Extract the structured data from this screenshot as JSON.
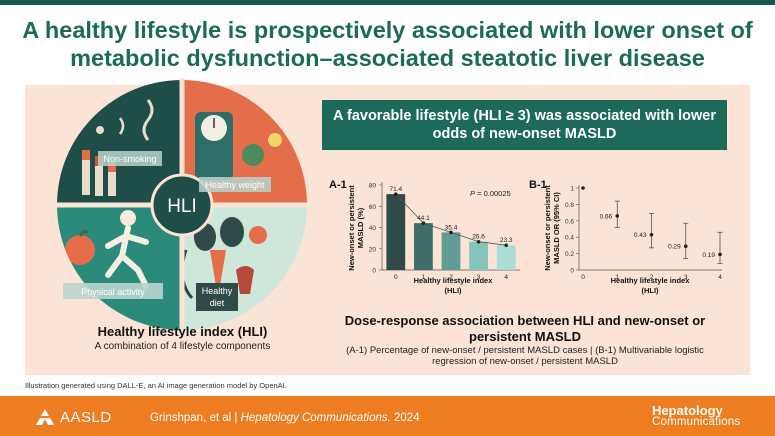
{
  "title": {
    "line1": "A healthy lifestyle is prospectively associated with lower onset of",
    "line2": "metabolic dysfunction–associated steatotic liver disease"
  },
  "infographic": {
    "center_label": "HLI",
    "components": {
      "non_smoking": "Non-smoking",
      "healthy_weight": "Healthy weight",
      "physical_activity": "Physical activity",
      "healthy_diet_line1": "Healthy",
      "healthy_diet_line2": "diet"
    },
    "hli_title": "Healthy lifestyle index (HLI)",
    "hli_subtitle": "A combination of 4 lifestyle components",
    "illustration_note": "Illustration generated using DALL-E, an AI image generation model by OpenAI."
  },
  "finding": {
    "headline": "A favorable lifestyle (HLI ≥ 3) was associated with lower odds of new-onset MASLD"
  },
  "dose_response": {
    "title": "Dose-response association between HLI and new-onset or persistent MASLD",
    "description": "(A-1) Percentage of new-onset / persistent MASLD cases | (B-1) Multivariable logistic regression of new-onset / persistent MASLD"
  },
  "chart_data": [
    {
      "type": "bar",
      "panel_label": "A-1",
      "categories": [
        "0",
        "1",
        "2",
        "3",
        "4"
      ],
      "values": [
        71.4,
        44.1,
        35.4,
        26.6,
        23.3
      ],
      "value_labels": [
        "71.4",
        "44.1",
        "35.4",
        "26.6",
        "23.3"
      ],
      "ylim": [
        0,
        80
      ],
      "yticks": [
        "0",
        "20",
        "40",
        "60",
        "80"
      ],
      "ylabel_line1": "New-onset or persistent",
      "ylabel_line2": "MASLD (%)",
      "xlabel_line1": "Healthy lifestyle index",
      "xlabel_line2": "(HLI)",
      "p_prefix": "P",
      "p_value": " = 0.00025",
      "trend_line": true,
      "bar_colors": [
        "#2f4a48",
        "#3f6e69",
        "#5f9d96",
        "#85c4bd",
        "#a9ddd6"
      ]
    },
    {
      "type": "scatter",
      "panel_label": "B-1",
      "categories": [
        "0",
        "1",
        "2",
        "3",
        "4"
      ],
      "or_values": [
        1,
        0.66,
        0.43,
        0.29,
        0.19
      ],
      "ci_low": [
        1,
        0.52,
        0.27,
        0.14,
        0.08
      ],
      "ci_high": [
        1,
        0.84,
        0.69,
        0.57,
        0.46
      ],
      "value_labels": [
        "",
        "0.66",
        "0.43",
        "0.29",
        "0.19"
      ],
      "ylim": [
        0,
        1
      ],
      "yticks": [
        "0",
        "0.2",
        "0.4",
        "0.6",
        "0.8",
        "1"
      ],
      "ylabel_line1": "New-onset or persistent",
      "ylabel_line2": "MASLD OR (95% CI)",
      "xlabel_line1": "Healthy lifestyle index",
      "xlabel_line2": "(HLI)"
    }
  ],
  "footer": {
    "logo_text": "AASLD",
    "authors": "Grinshpan, et al",
    "separator": "|",
    "journal": "Hepatology Communications.",
    "year": "2024",
    "brand_line1": "Hepatology",
    "brand_line2": "Communications"
  },
  "colors": {
    "title_green": "#1b6b55",
    "panel_bg": "#fbe3d6",
    "headline_box": "#1e6a5a",
    "footer_orange": "#ee7d21"
  }
}
